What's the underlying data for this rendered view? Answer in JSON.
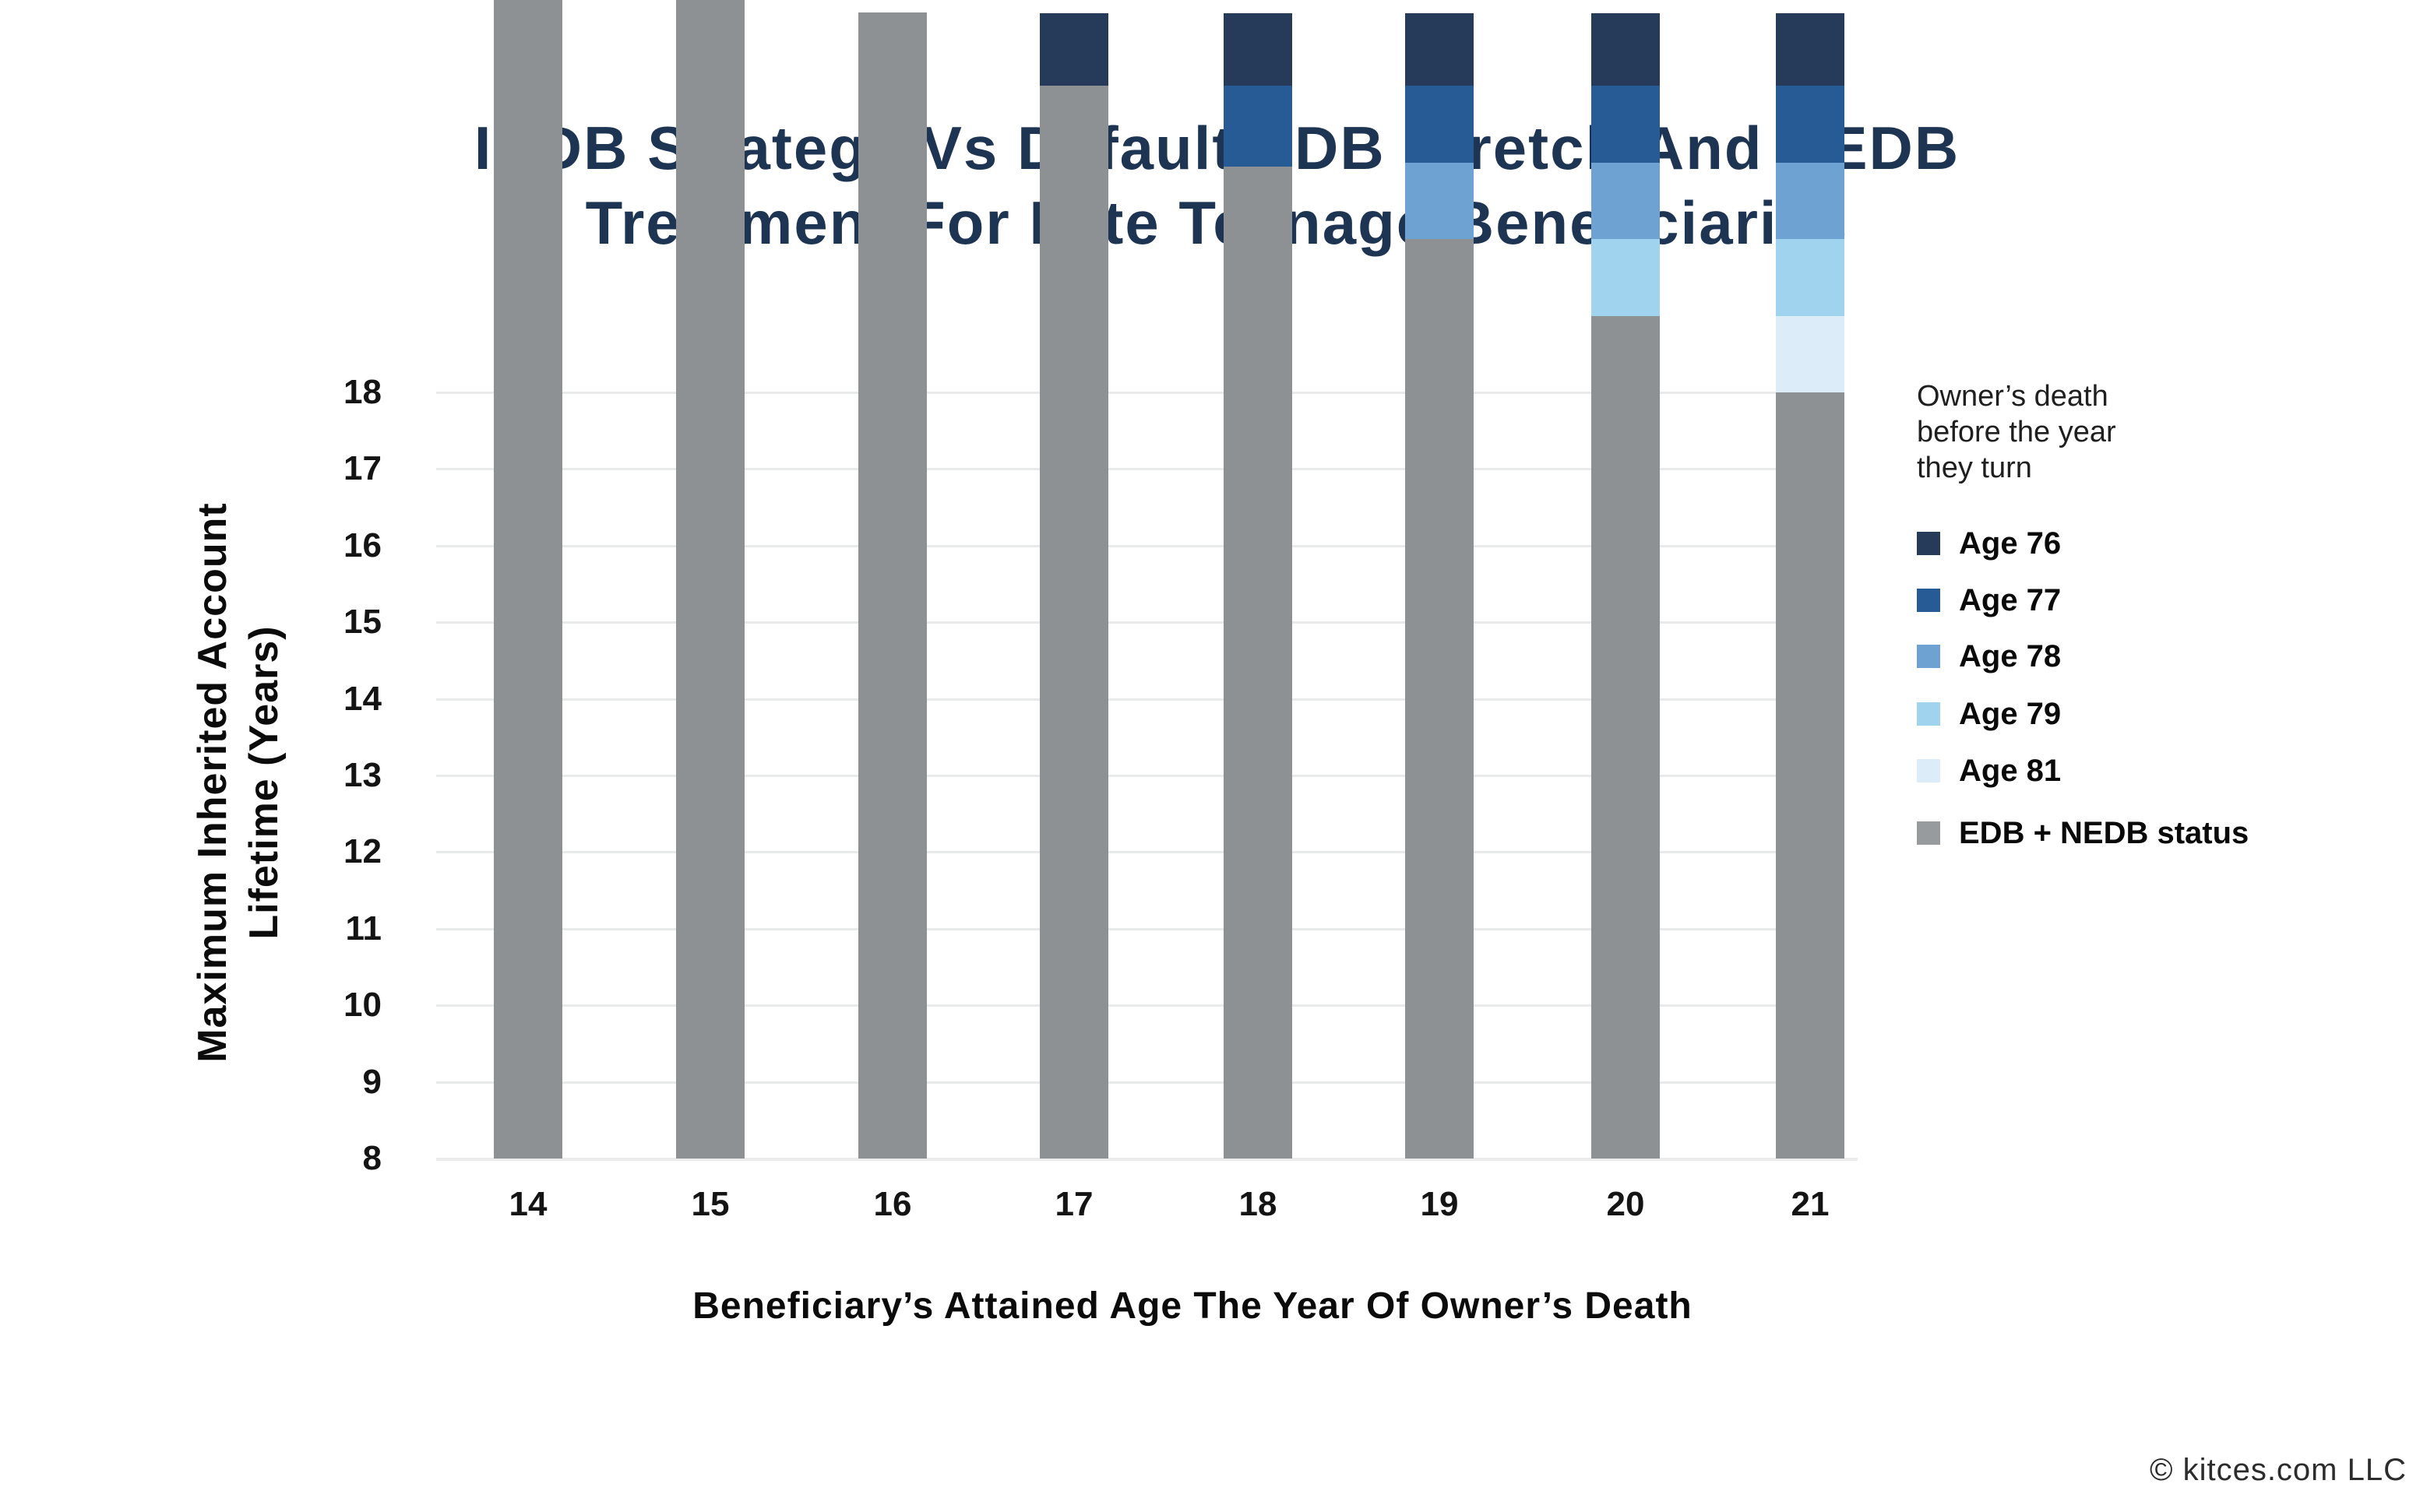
{
  "page": {
    "background": "#ffffff"
  },
  "title": {
    "line1": "INDB Strategy Vs Default EDB Stretch And NEDB",
    "line2": "Treatment For Late Teenage Beneficiaries",
    "color": "#1d3453"
  },
  "y_axis": {
    "title_line1": "Maximum Inherited Account",
    "title_line2": "Lifetime (Years)",
    "ticks": [
      18,
      17,
      16,
      15,
      14,
      13,
      12,
      11,
      10,
      9,
      8
    ]
  },
  "x_axis": {
    "title": "Beneficiary’s Attained Age The Year Of Owner’s Death",
    "categories": [
      "14",
      "15",
      "16",
      "17",
      "18",
      "19",
      "20",
      "21"
    ]
  },
  "legend": {
    "heading_lines": [
      "Owner’s death",
      "before the year",
      "they turn"
    ],
    "items": [
      {
        "label": "Age 76",
        "color": "#263a59"
      },
      {
        "label": "Age 77",
        "color": "#265b95"
      },
      {
        "label": "Age 78",
        "color": "#6da2d2"
      },
      {
        "label": "Age 79",
        "color": "#a0d3ed"
      },
      {
        "label": "Age 81",
        "color": "#dcecf8"
      },
      {
        "label": "EDB + NEDB status",
        "color": "#989b9e"
      }
    ]
  },
  "footer": {
    "copyright": "© kitces.com LLC"
  },
  "chart_data": {
    "type": "bar",
    "stacked": true,
    "stack_order": "bottom_to_top",
    "title": "INDB Strategy Vs Default EDB Stretch And NEDB Treatment For Late Teenage Beneficiaries",
    "xlabel": "Beneficiary’s Attained Age The Year Of Owner’s Death",
    "ylabel": "Maximum Inherited Account Lifetime (Years)",
    "categories": [
      14,
      15,
      16,
      17,
      18,
      19,
      20,
      21
    ],
    "series": [
      {
        "name": "EDB + NEDB status",
        "color": "#8d9193",
        "values": [
          17,
          16,
          15,
          14,
          12.95,
          12,
          11,
          10
        ]
      },
      {
        "name": "Age 81",
        "color": "#dcecf8",
        "values": [
          0,
          0,
          0,
          0,
          0,
          0,
          0,
          1
        ]
      },
      {
        "name": "Age 79",
        "color": "#a0d3ed",
        "values": [
          0,
          0,
          0,
          0,
          0,
          0,
          1,
          1
        ]
      },
      {
        "name": "Age 78",
        "color": "#6da2d2",
        "values": [
          0,
          0,
          0,
          0,
          0,
          1,
          1,
          1
        ]
      },
      {
        "name": "Age 77",
        "color": "#265b95",
        "values": [
          0,
          0,
          0,
          0,
          1.05,
          1,
          1,
          1
        ]
      },
      {
        "name": "Age 76",
        "color": "#263a59",
        "values": [
          0,
          0,
          0,
          0.95,
          0.95,
          0.95,
          0.95,
          0.95
        ]
      }
    ],
    "stack_totals": [
      17,
      16,
      15,
      14.95,
      14.95,
      14.95,
      14.95,
      14.95
    ],
    "ylim": [
      8,
      18
    ],
    "baseline": 8,
    "grid": true,
    "legend_position": "right"
  }
}
